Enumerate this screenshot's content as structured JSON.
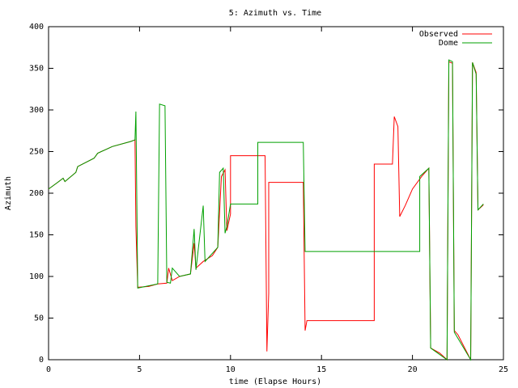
{
  "chart_data": {
    "type": "line",
    "title": "5: Azimuth vs. Time",
    "x_label": "time (Elapse Hours)",
    "y_label": "Azimuth",
    "xlim": [
      0,
      25
    ],
    "xticks": [
      0,
      5,
      10,
      15,
      20,
      25
    ],
    "ylim": [
      0,
      400
    ],
    "yticks": [
      0,
      50,
      100,
      150,
      200,
      250,
      300,
      350,
      400
    ],
    "grid": false,
    "legend": "top-right",
    "series": [
      {
        "name": "Observed",
        "color": "#ff0000",
        "x": [
          0,
          0.5,
          0.8,
          0.9,
          1.5,
          1.6,
          2.5,
          2.7,
          3.5,
          4.5,
          4.75,
          4.8,
          4.9,
          5.5,
          6.0,
          6.5,
          6.6,
          6.8,
          7.2,
          7.8,
          8.0,
          8.1,
          8.5,
          9.0,
          9.3,
          9.5,
          9.7,
          9.8,
          10.0,
          10.0,
          11.9,
          12.0,
          12.1,
          12.1,
          14.0,
          14.1,
          14.2,
          17.9,
          17.9,
          18.9,
          19.0,
          19.2,
          19.3,
          19.6,
          20.0,
          20.5,
          20.9,
          21.0,
          21.5,
          21.9,
          22.0,
          22.2,
          22.3,
          22.5,
          23.2,
          23.3,
          23.5,
          23.6,
          23.9
        ],
        "values": [
          205,
          213,
          218,
          214,
          225,
          232,
          242,
          248,
          256,
          262,
          264,
          160,
          87,
          88,
          91,
          92,
          110,
          95,
          100,
          103,
          140,
          110,
          118,
          125,
          135,
          220,
          228,
          155,
          175,
          245,
          245,
          10,
          80,
          213,
          213,
          35,
          47,
          47,
          235,
          235,
          292,
          280,
          172,
          185,
          205,
          220,
          230,
          14,
          8,
          0,
          358,
          356,
          35,
          30,
          0,
          357,
          345,
          180,
          186
        ]
      },
      {
        "name": "Dome",
        "color": "#00a000",
        "x": [
          0,
          0.5,
          0.8,
          0.9,
          1.5,
          1.6,
          2.5,
          2.7,
          3.5,
          4.5,
          4.75,
          4.8,
          4.9,
          6.0,
          6.1,
          6.4,
          6.5,
          6.7,
          6.8,
          7.2,
          7.8,
          8.0,
          8.1,
          8.5,
          8.6,
          9.3,
          9.4,
          9.6,
          9.7,
          9.8,
          10.0,
          11.5,
          11.5,
          14.0,
          14.1,
          20.4,
          20.4,
          20.9,
          21.0,
          21.9,
          22.0,
          22.2,
          22.3,
          23.2,
          23.3,
          23.5,
          23.6,
          23.9
        ],
        "values": [
          205,
          213,
          218,
          214,
          225,
          232,
          242,
          248,
          256,
          262,
          264,
          298,
          86,
          91,
          307,
          305,
          93,
          92,
          110,
          100,
          103,
          157,
          108,
          185,
          118,
          135,
          225,
          230,
          152,
          160,
          187,
          187,
          261,
          261,
          130,
          130,
          220,
          230,
          14,
          0,
          360,
          358,
          33,
          0,
          357,
          343,
          180,
          187
        ]
      }
    ]
  }
}
